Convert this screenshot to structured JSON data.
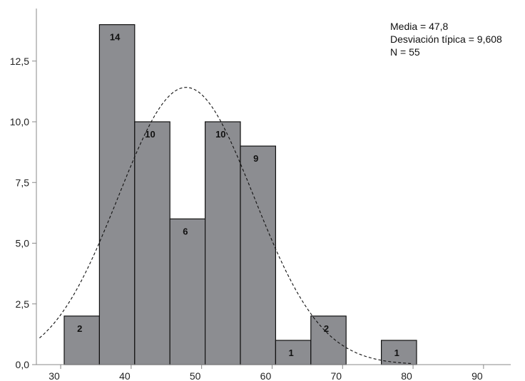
{
  "chart_data": {
    "type": "bar",
    "subtype": "histogram",
    "bins": [
      {
        "x0": 30.5,
        "x1": 35.5,
        "count": 2
      },
      {
        "x0": 35.5,
        "x1": 40.5,
        "count": 14
      },
      {
        "x0": 40.5,
        "x1": 45.5,
        "count": 10
      },
      {
        "x0": 45.5,
        "x1": 50.5,
        "count": 6
      },
      {
        "x0": 50.5,
        "x1": 55.5,
        "count": 10
      },
      {
        "x0": 55.5,
        "x1": 60.5,
        "count": 9
      },
      {
        "x0": 60.5,
        "x1": 65.5,
        "count": 1
      },
      {
        "x0": 65.5,
        "x1": 70.5,
        "count": 2
      },
      {
        "x0": 70.5,
        "x1": 75.5,
        "count": 0
      },
      {
        "x0": 75.5,
        "x1": 80.5,
        "count": 1
      }
    ],
    "xlim": [
      27,
      97
    ],
    "ylim": [
      0,
      14
    ],
    "xticks": [
      30,
      40,
      50,
      60,
      70,
      80,
      90
    ],
    "xtick_labels": [
      "30",
      "40",
      "50",
      "60",
      "70",
      "80",
      "90"
    ],
    "yticks": [
      0,
      2.5,
      5,
      7.5,
      10,
      12.5
    ],
    "ytick_labels": [
      "0,0",
      "2,5",
      "5,0",
      "7,5",
      "10,0",
      "12,5"
    ],
    "normal_curve": {
      "mean": 47.8,
      "sd": 9.608,
      "n": 55,
      "bin_width": 5,
      "style": "dashed"
    },
    "bar_color": "#8c8d91",
    "stats_text": {
      "mean": "Media = 47,8",
      "sd": "Desviación típica = 9,608",
      "n": "N = 55"
    },
    "grid": false
  }
}
